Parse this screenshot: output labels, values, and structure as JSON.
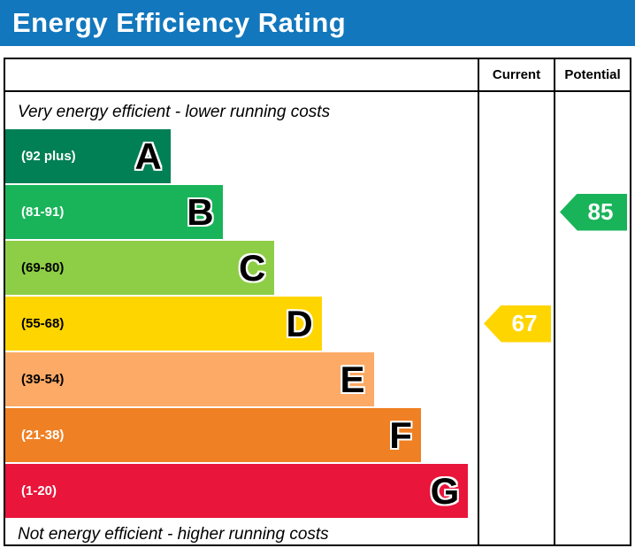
{
  "header": {
    "title": "Energy Efficiency Rating",
    "bg_color": "#1277bd"
  },
  "columns": {
    "current_label": "Current",
    "potential_label": "Potential"
  },
  "chart_data": {
    "type": "bar",
    "title": "Energy Efficiency Rating",
    "top_note": "Very energy efficient - lower running costs",
    "bottom_note": "Not energy efficient - higher running costs",
    "bands": [
      {
        "letter": "A",
        "range_label": "(92 plus)",
        "color": "#008054",
        "label_color": "#ffffff",
        "width_pct": 35
      },
      {
        "letter": "B",
        "range_label": "(81-91)",
        "color": "#19b459",
        "label_color": "#ffffff",
        "width_pct": 46
      },
      {
        "letter": "C",
        "range_label": "(69-80)",
        "color": "#8dce46",
        "label_color": "#000000",
        "width_pct": 57
      },
      {
        "letter": "D",
        "range_label": "(55-68)",
        "color": "#ffd500",
        "label_color": "#000000",
        "width_pct": 67
      },
      {
        "letter": "E",
        "range_label": "(39-54)",
        "color": "#fcaa65",
        "label_color": "#000000",
        "width_pct": 78
      },
      {
        "letter": "F",
        "range_label": "(21-38)",
        "color": "#ef8023",
        "label_color": "#ffffff",
        "width_pct": 88
      },
      {
        "letter": "G",
        "range_label": "(1-20)",
        "color": "#e9153b",
        "label_color": "#ffffff",
        "width_pct": 98
      }
    ],
    "current": {
      "value": 67,
      "band": "D",
      "color": "#ffd500",
      "text_color": "#ffffff"
    },
    "potential": {
      "value": 85,
      "band": "B",
      "color": "#19b459",
      "text_color": "#ffffff"
    }
  }
}
